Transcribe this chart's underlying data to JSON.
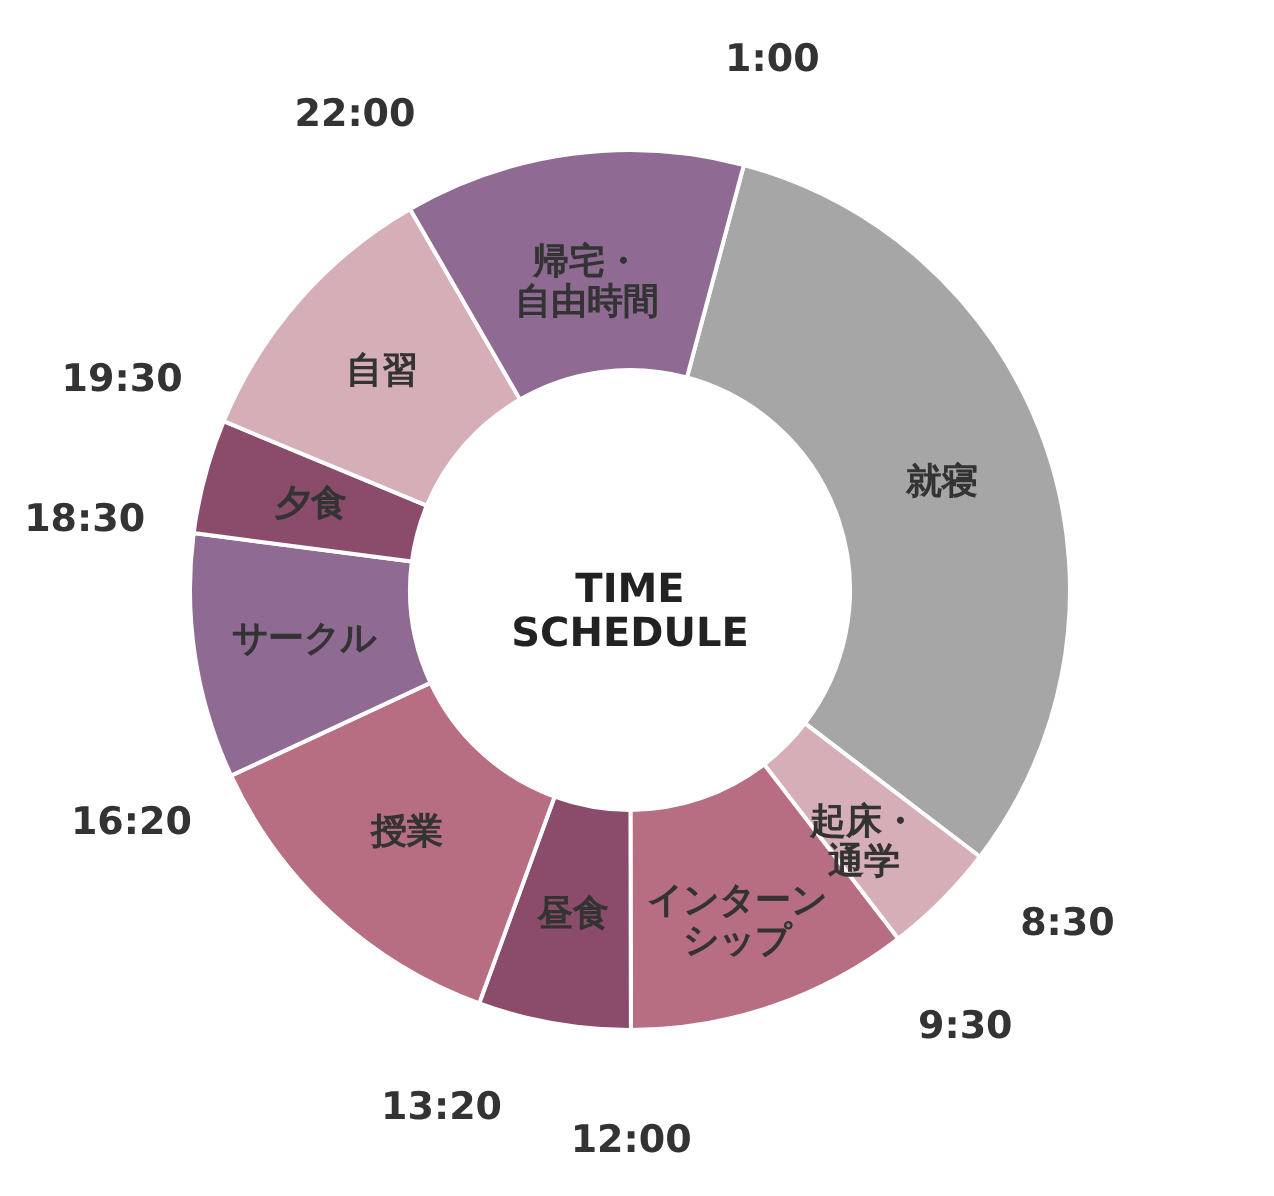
{
  "chart_data": {
    "type": "donut",
    "title": "TIME\nSCHEDULE",
    "categories": [
      "就寝",
      "起床・通学",
      "インターンシップ",
      "昼食",
      "授業",
      "サークル",
      "夕食",
      "自習",
      "帰宅・自由時間"
    ],
    "values": [
      31.2,
      4.2,
      10.4,
      5.6,
      12.5,
      9.0,
      4.2,
      10.4,
      12.5
    ],
    "colors": [
      "#a6a6a6",
      "#d5aeb7",
      "#b86e82",
      "#8a4c6a",
      "#b86e82",
      "#8f6a93",
      "#8a4c6a",
      "#d5aeb7",
      "#8f6a93"
    ],
    "annotations": [
      "1:00",
      "8:30",
      "9:30",
      "12:00",
      "13:20",
      "16:20",
      "18:30",
      "19:30",
      "22:00"
    ],
    "legend": false
  }
}
